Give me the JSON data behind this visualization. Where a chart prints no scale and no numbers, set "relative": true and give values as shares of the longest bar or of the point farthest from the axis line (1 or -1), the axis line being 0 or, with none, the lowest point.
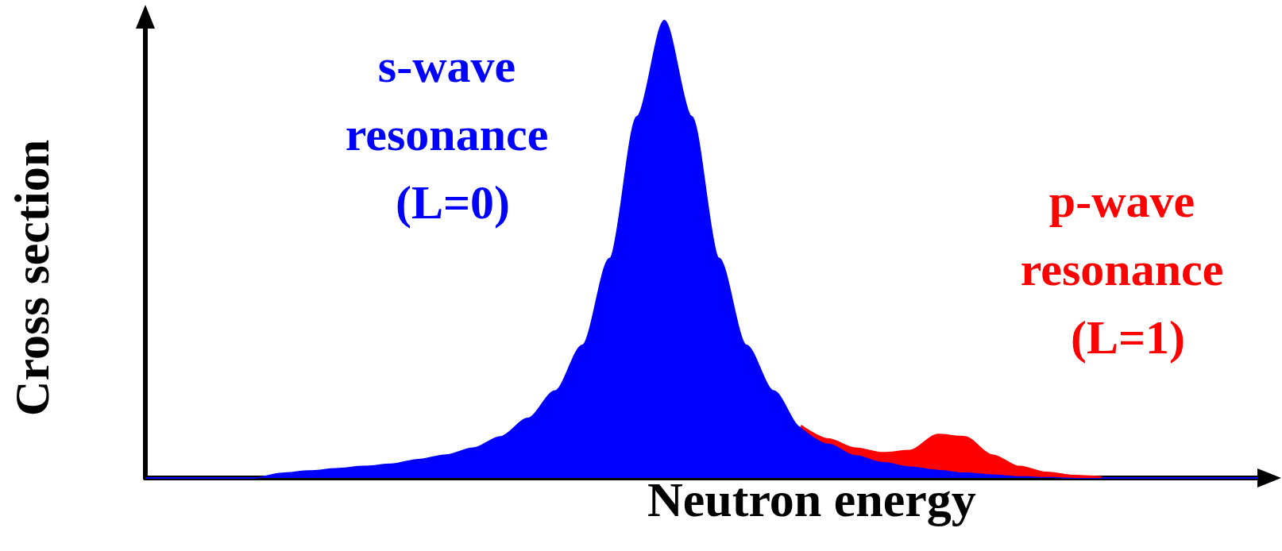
{
  "chart_data": {
    "type": "area",
    "relative": true,
    "stacked": true,
    "legend": false,
    "xlabel": "Neutron energy",
    "ylabel": "Cross section",
    "categories": [
      null,
      null,
      null,
      null,
      null,
      null,
      null,
      null,
      null,
      null,
      null,
      null,
      null,
      null,
      null,
      null,
      null,
      null,
      null,
      null,
      null,
      null,
      null,
      null,
      null,
      null,
      null,
      null,
      null,
      null,
      null,
      null,
      null,
      null,
      null,
      null,
      null,
      null,
      null,
      null,
      null,
      null
    ],
    "series": [
      {
        "name": "s-wave resonance (L=0)",
        "color": "#0000ff",
        "values": [
          0,
          0,
          0,
          0,
          0,
          0.01,
          0.015,
          0.02,
          0.025,
          0.03,
          0.04,
          0.05,
          0.065,
          0.09,
          0.13,
          0.19,
          0.29,
          0.48,
          0.79,
          1,
          0.79,
          0.48,
          0.29,
          0.19,
          0.11,
          0.075,
          0.05,
          0.035,
          0.025,
          0.018,
          0.012,
          0.008,
          0.004,
          0.002,
          0,
          0,
          0,
          0,
          0,
          0,
          0,
          0
        ]
      },
      {
        "name": "p-wave resonance (L=1)",
        "color": "#ff0000",
        "values": [
          null,
          null,
          null,
          null,
          null,
          null,
          null,
          null,
          null,
          null,
          null,
          null,
          null,
          null,
          null,
          null,
          null,
          null,
          null,
          null,
          null,
          null,
          null,
          null,
          0.005,
          0.01,
          0.015,
          0.02,
          0.035,
          0.077,
          0.078,
          0.042,
          0.021,
          0.01,
          0.005,
          0.002,
          null,
          null,
          null,
          null,
          null,
          null
        ]
      }
    ]
  }
}
